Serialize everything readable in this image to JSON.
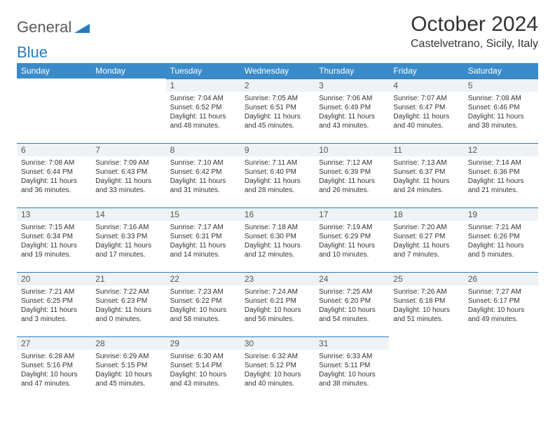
{
  "logo": {
    "word1": "General",
    "word2": "Blue"
  },
  "title": "October 2024",
  "location": "Castelvetrano, Sicily, Italy",
  "colors": {
    "header_bg": "#3b8bc9",
    "header_fg": "#ffffff",
    "daynum_bg": "#eef2f4",
    "daynum_border": "#2b7bbd",
    "text": "#333333",
    "logo_gray": "#5a5a5a",
    "logo_blue": "#2b7bbd"
  },
  "weekdays": [
    "Sunday",
    "Monday",
    "Tuesday",
    "Wednesday",
    "Thursday",
    "Friday",
    "Saturday"
  ],
  "weeks": [
    [
      null,
      null,
      {
        "n": "1",
        "sr": "7:04 AM",
        "ss": "6:52 PM",
        "dl": "11 hours and 48 minutes."
      },
      {
        "n": "2",
        "sr": "7:05 AM",
        "ss": "6:51 PM",
        "dl": "11 hours and 45 minutes."
      },
      {
        "n": "3",
        "sr": "7:06 AM",
        "ss": "6:49 PM",
        "dl": "11 hours and 43 minutes."
      },
      {
        "n": "4",
        "sr": "7:07 AM",
        "ss": "6:47 PM",
        "dl": "11 hours and 40 minutes."
      },
      {
        "n": "5",
        "sr": "7:08 AM",
        "ss": "6:46 PM",
        "dl": "11 hours and 38 minutes."
      }
    ],
    [
      {
        "n": "6",
        "sr": "7:08 AM",
        "ss": "6:44 PM",
        "dl": "11 hours and 36 minutes."
      },
      {
        "n": "7",
        "sr": "7:09 AM",
        "ss": "6:43 PM",
        "dl": "11 hours and 33 minutes."
      },
      {
        "n": "8",
        "sr": "7:10 AM",
        "ss": "6:42 PM",
        "dl": "11 hours and 31 minutes."
      },
      {
        "n": "9",
        "sr": "7:11 AM",
        "ss": "6:40 PM",
        "dl": "11 hours and 28 minutes."
      },
      {
        "n": "10",
        "sr": "7:12 AM",
        "ss": "6:39 PM",
        "dl": "11 hours and 26 minutes."
      },
      {
        "n": "11",
        "sr": "7:13 AM",
        "ss": "6:37 PM",
        "dl": "11 hours and 24 minutes."
      },
      {
        "n": "12",
        "sr": "7:14 AM",
        "ss": "6:36 PM",
        "dl": "11 hours and 21 minutes."
      }
    ],
    [
      {
        "n": "13",
        "sr": "7:15 AM",
        "ss": "6:34 PM",
        "dl": "11 hours and 19 minutes."
      },
      {
        "n": "14",
        "sr": "7:16 AM",
        "ss": "6:33 PM",
        "dl": "11 hours and 17 minutes."
      },
      {
        "n": "15",
        "sr": "7:17 AM",
        "ss": "6:31 PM",
        "dl": "11 hours and 14 minutes."
      },
      {
        "n": "16",
        "sr": "7:18 AM",
        "ss": "6:30 PM",
        "dl": "11 hours and 12 minutes."
      },
      {
        "n": "17",
        "sr": "7:19 AM",
        "ss": "6:29 PM",
        "dl": "11 hours and 10 minutes."
      },
      {
        "n": "18",
        "sr": "7:20 AM",
        "ss": "6:27 PM",
        "dl": "11 hours and 7 minutes."
      },
      {
        "n": "19",
        "sr": "7:21 AM",
        "ss": "6:26 PM",
        "dl": "11 hours and 5 minutes."
      }
    ],
    [
      {
        "n": "20",
        "sr": "7:21 AM",
        "ss": "6:25 PM",
        "dl": "11 hours and 3 minutes."
      },
      {
        "n": "21",
        "sr": "7:22 AM",
        "ss": "6:23 PM",
        "dl": "11 hours and 0 minutes."
      },
      {
        "n": "22",
        "sr": "7:23 AM",
        "ss": "6:22 PM",
        "dl": "10 hours and 58 minutes."
      },
      {
        "n": "23",
        "sr": "7:24 AM",
        "ss": "6:21 PM",
        "dl": "10 hours and 56 minutes."
      },
      {
        "n": "24",
        "sr": "7:25 AM",
        "ss": "6:20 PM",
        "dl": "10 hours and 54 minutes."
      },
      {
        "n": "25",
        "sr": "7:26 AM",
        "ss": "6:18 PM",
        "dl": "10 hours and 51 minutes."
      },
      {
        "n": "26",
        "sr": "7:27 AM",
        "ss": "6:17 PM",
        "dl": "10 hours and 49 minutes."
      }
    ],
    [
      {
        "n": "27",
        "sr": "6:28 AM",
        "ss": "5:16 PM",
        "dl": "10 hours and 47 minutes."
      },
      {
        "n": "28",
        "sr": "6:29 AM",
        "ss": "5:15 PM",
        "dl": "10 hours and 45 minutes."
      },
      {
        "n": "29",
        "sr": "6:30 AM",
        "ss": "5:14 PM",
        "dl": "10 hours and 43 minutes."
      },
      {
        "n": "30",
        "sr": "6:32 AM",
        "ss": "5:12 PM",
        "dl": "10 hours and 40 minutes."
      },
      {
        "n": "31",
        "sr": "6:33 AM",
        "ss": "5:11 PM",
        "dl": "10 hours and 38 minutes."
      },
      null,
      null
    ]
  ],
  "labels": {
    "sunrise": "Sunrise: ",
    "sunset": "Sunset: ",
    "daylight": "Daylight: "
  }
}
